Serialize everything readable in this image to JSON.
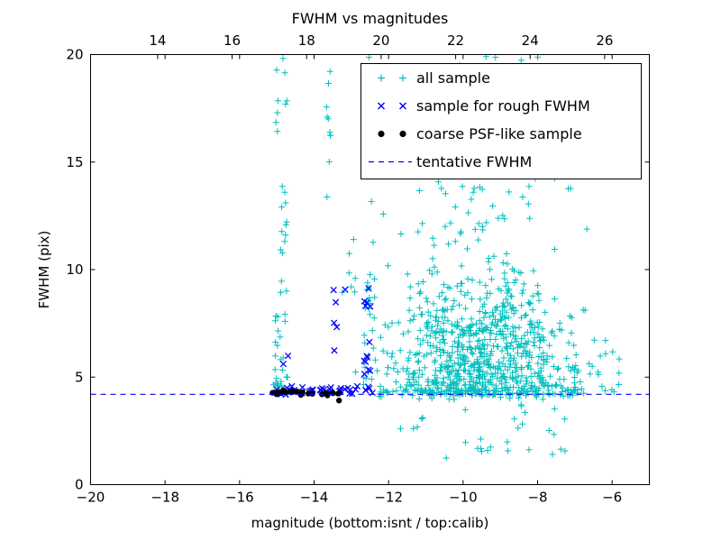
{
  "chart_data": {
    "type": "scatter",
    "title": "FWHM vs magnitudes",
    "xlabel": "magnitude (bottom:isnt / top:calib)",
    "ylabel": "FWHM (pix)",
    "xlim": [
      -20,
      -5
    ],
    "ylim": [
      0,
      20
    ],
    "x_ticks_bottom": [
      -20,
      -18,
      -16,
      -14,
      -12,
      -10,
      -8,
      -6
    ],
    "top_axis": {
      "ticks": [
        14,
        16,
        18,
        20,
        22,
        24,
        26
      ],
      "offset_from_bottom": 32.2
    },
    "y_ticks": [
      0,
      5,
      10,
      15,
      20
    ],
    "grid": false,
    "legend_position": "upper right",
    "legend": [
      "all sample",
      "sample for rough FWHM",
      "coarse PSF-like sample",
      "tentative FWHM"
    ],
    "tentative_fwhm_y": 4.2,
    "seed": 7,
    "series": [
      {
        "name": "all sample",
        "marker": "plus",
        "color": "#00bfbf",
        "clusters": [
          {
            "count": 700,
            "x": {
              "dist": "normal",
              "mean": -9.4,
              "sd": 1.25,
              "min": -12.9,
              "max": -5.8
            },
            "y": {
              "dist": "halfnormal",
              "base": 4.15,
              "sd": 2.4,
              "max": 20
            }
          },
          {
            "count": 180,
            "x": {
              "dist": "normal",
              "mean": -9.6,
              "sd": 1.15,
              "min": -12.5,
              "max": -6.3
            },
            "y": {
              "dist": "powuniform",
              "min": 7,
              "max": 20,
              "p": 1.6
            }
          },
          {
            "count": 30,
            "x": {
              "dist": "uniform",
              "min": -11.8,
              "max": -7.2
            },
            "y": {
              "dist": "uniform",
              "min": 1.2,
              "max": 3.8
            }
          },
          {
            "count": 110,
            "x": {
              "dist": "uniform",
              "min": -12.3,
              "max": -6.8
            },
            "y": {
              "dist": "normal",
              "mean": 4.3,
              "sd": 0.15,
              "min": 3.9,
              "max": 4.8
            }
          },
          {
            "count": 40,
            "x": {
              "dist": "uniform",
              "min": -15.05,
              "max": -14.72
            },
            "y": {
              "dist": "powuniform",
              "min": 4.3,
              "max": 20,
              "p": 1.4
            }
          },
          {
            "count": 12,
            "x": {
              "dist": "uniform",
              "min": -15.1,
              "max": -14.7
            },
            "y": {
              "dist": "uniform",
              "min": 4.2,
              "max": 5.5
            }
          },
          {
            "count": 10,
            "x": {
              "dist": "uniform",
              "min": -13.72,
              "max": -13.5
            },
            "y": {
              "dist": "uniform",
              "min": 12.5,
              "max": 20
            }
          },
          {
            "count": 7,
            "x": {
              "dist": "uniform",
              "min": -13.6,
              "max": -12.85
            },
            "y": {
              "dist": "uniform",
              "min": 8,
              "max": 12
            }
          },
          {
            "count": 22,
            "x": {
              "dist": "uniform",
              "min": -12.68,
              "max": -12.35
            },
            "y": {
              "dist": "powuniform",
              "min": 4.4,
              "max": 12,
              "p": 1.2
            }
          },
          {
            "count": 7,
            "x": {
              "dist": "uniform",
              "min": -12.6,
              "max": -12.3
            },
            "y": {
              "dist": "uniform",
              "min": 13,
              "max": 20
            }
          },
          {
            "count": 6,
            "x": {
              "dist": "uniform",
              "min": -6.4,
              "max": -5.3
            },
            "y": {
              "dist": "uniform",
              "min": 4.3,
              "max": 6.3
            }
          }
        ]
      },
      {
        "name": "sample for rough FWHM",
        "marker": "x",
        "color": "#0000ff",
        "clusters": [
          {
            "count": 40,
            "x": {
              "dist": "uniform",
              "min": -15.1,
              "max": -12.2
            },
            "y": {
              "dist": "normal",
              "mean": 4.38,
              "sd": 0.1,
              "min": 4.15,
              "max": 4.7
            }
          },
          {
            "count": 13,
            "x": {
              "dist": "uniform",
              "min": -12.66,
              "max": -12.48
            },
            "y": {
              "dist": "uniform",
              "min": 4.7,
              "max": 10.5
            }
          },
          {
            "count": 6,
            "x": {
              "dist": "uniform",
              "min": -13.6,
              "max": -13.15
            },
            "y": {
              "dist": "uniform",
              "min": 6.2,
              "max": 9.8
            }
          },
          {
            "count": 2,
            "x": {
              "dist": "uniform",
              "min": -14.95,
              "max": -14.7
            },
            "y": {
              "dist": "uniform",
              "min": 5.3,
              "max": 6.0
            }
          }
        ]
      },
      {
        "name": "coarse PSF-like sample",
        "marker": "dot",
        "color": "#000000",
        "clusters": [
          {
            "count": 24,
            "x": {
              "dist": "uniform",
              "min": -15.15,
              "max": -13.3
            },
            "y": {
              "dist": "normal",
              "mean": 4.27,
              "sd": 0.07,
              "min": 4.1,
              "max": 4.45
            }
          },
          {
            "count": 1,
            "x": {
              "dist": "uniform",
              "min": -13.42,
              "max": -13.32
            },
            "y": {
              "dist": "uniform",
              "min": 3.8,
              "max": 3.95
            }
          }
        ]
      }
    ],
    "lines": [
      {
        "name": "tentative FWHM",
        "y": 4.2,
        "color": "#0000ff",
        "style": "dashed"
      }
    ]
  }
}
